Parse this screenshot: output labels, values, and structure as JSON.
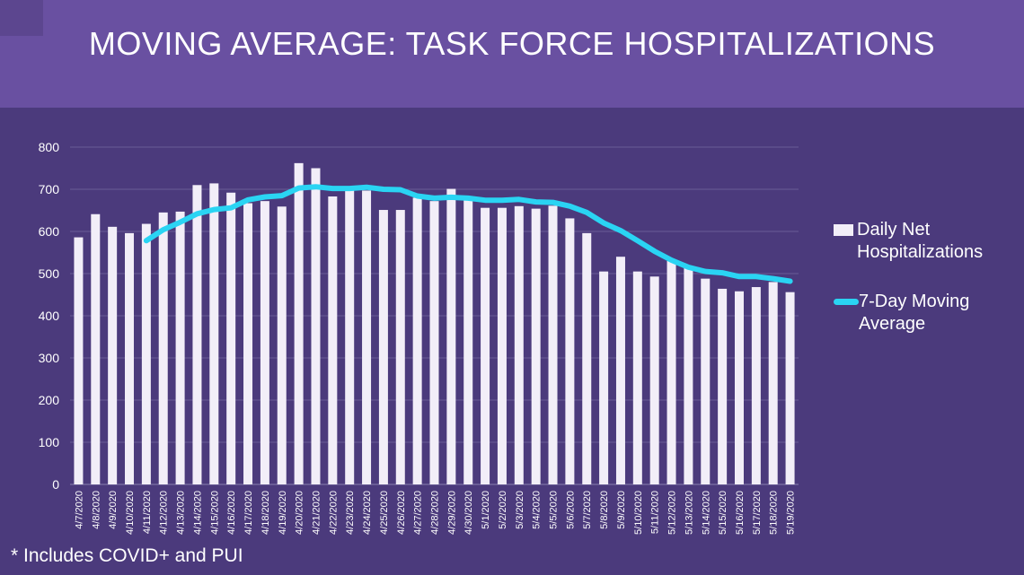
{
  "title": "MOVING AVERAGE: TASK FORCE HOSPITALIZATIONS",
  "footnote": "* Includes COVID+ and PUI",
  "colors": {
    "header": "#6950a1",
    "background": "#4b3a7c",
    "bars": "#f2eef8",
    "line": "#2ad4f3",
    "text": "#ffffff"
  },
  "chart_data": {
    "type": "bar",
    "title": "MOVING AVERAGE: TASK FORCE HOSPITALIZATIONS",
    "xlabel": "",
    "ylabel": "",
    "ylim": [
      0,
      800
    ],
    "yticks": [
      0,
      100,
      200,
      300,
      400,
      500,
      600,
      700,
      800
    ],
    "grid": true,
    "legend_position": "right",
    "categories": [
      "4/7/2020",
      "4/8/2020",
      "4/9/2020",
      "4/10/2020",
      "4/11/2020",
      "4/12/2020",
      "4/13/2020",
      "4/14/2020",
      "4/15/2020",
      "4/16/2020",
      "4/17/2020",
      "4/18/2020",
      "4/19/2020",
      "4/20/2020",
      "4/21/2020",
      "4/22/2020",
      "4/23/2020",
      "4/24/2020",
      "4/25/2020",
      "4/26/2020",
      "4/27/2020",
      "4/28/2020",
      "4/29/2020",
      "4/30/2020",
      "5/1/2020",
      "5/2/2020",
      "5/3/2020",
      "5/4/2020",
      "5/5/2020",
      "5/6/2020",
      "5/7/2020",
      "5/8/2020",
      "5/9/2020",
      "5/10/2020",
      "5/11/2020",
      "5/12/2020",
      "5/13/2020",
      "5/14/2020",
      "5/15/2020",
      "5/16/2020",
      "5/17/2020",
      "5/18/2020",
      "5/19/2020"
    ],
    "series": [
      {
        "name": "Daily Net Hospitalizations",
        "kind": "bar",
        "values": [
          586,
          641,
          611,
          596,
          618,
          645,
          647,
          710,
          714,
          692,
          667,
          672,
          659,
          762,
          750,
          683,
          700,
          697,
          651,
          651,
          680,
          672,
          701,
          676,
          656,
          656,
          660,
          654,
          661,
          631,
          596,
          505,
          540,
          505,
          493,
          530,
          513,
          488,
          464,
          458,
          468,
          480,
          456
        ]
      },
      {
        "name": "7-Day Moving Average",
        "kind": "line",
        "values": [
          null,
          null,
          null,
          null,
          578,
          604,
          622,
          642,
          652,
          656,
          675,
          682,
          685,
          703,
          706,
          702,
          702,
          705,
          700,
          699,
          684,
          679,
          681,
          679,
          674,
          674,
          676,
          670,
          669,
          660,
          645,
          620,
          602,
          578,
          553,
          532,
          515,
          505,
          502,
          493,
          493,
          488,
          482
        ]
      }
    ]
  }
}
